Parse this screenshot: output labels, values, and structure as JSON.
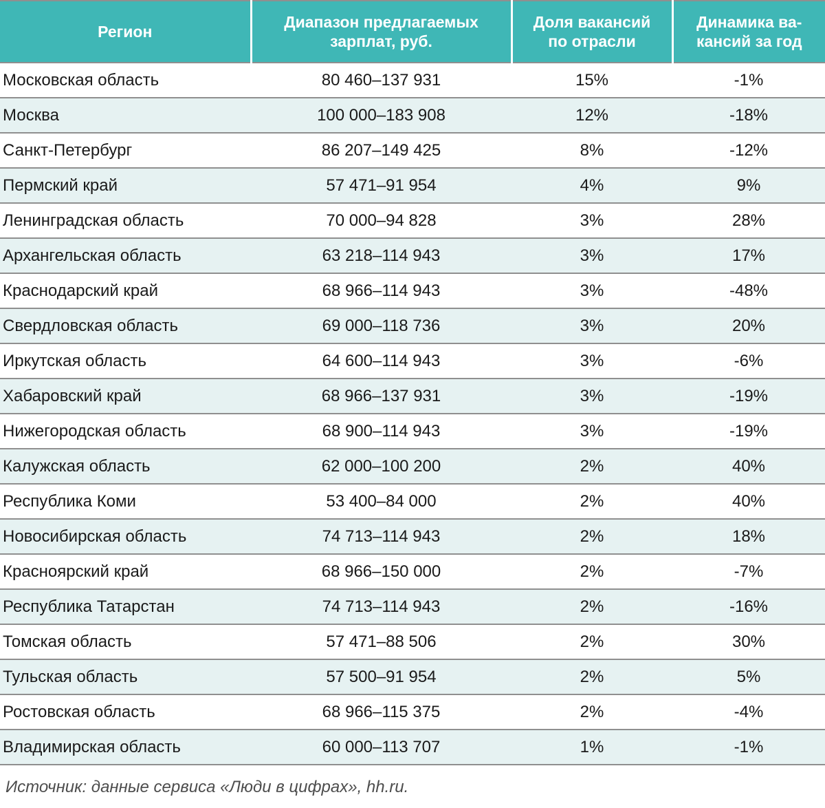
{
  "colors": {
    "header_bg": "#3FB7B6",
    "zebra_row_bg": "#E6F2F2",
    "separator_line": "#8F8F8F",
    "header_text": "#FFFFFF",
    "body_text": "#1A1A1A",
    "source_text": "#4D4D4D"
  },
  "table": {
    "columns": [
      {
        "id": "region",
        "lines": [
          "Регион"
        ]
      },
      {
        "id": "salary_range",
        "lines": [
          "Диапазон предлагаемых",
          "зарплат, руб."
        ]
      },
      {
        "id": "industry_share",
        "lines": [
          "Доля вакансий",
          "по отрасли"
        ]
      },
      {
        "id": "yoy_change",
        "lines": [
          "Динамика ва-",
          "кансий за год"
        ]
      }
    ],
    "rows": [
      [
        "Московская область",
        "80 460–137 931",
        "15%",
        "-1%"
      ],
      [
        "Москва",
        "100 000–183 908",
        "12%",
        "-18%"
      ],
      [
        "Санкт-Петербург",
        "86 207–149 425",
        "8%",
        "-12%"
      ],
      [
        "Пермский край",
        "57 471–91 954",
        "4%",
        "9%"
      ],
      [
        "Ленинградская область",
        "70 000–94 828",
        "3%",
        "28%"
      ],
      [
        "Архангельская область",
        "63 218–114 943",
        "3%",
        "17%"
      ],
      [
        "Краснодарский край",
        "68 966–114 943",
        "3%",
        "-48%"
      ],
      [
        "Свердловская область",
        "69 000–118 736",
        "3%",
        "20%"
      ],
      [
        "Иркутская область",
        "64 600–114 943",
        "3%",
        "-6%"
      ],
      [
        "Хабаровский край",
        "68 966–137 931",
        "3%",
        "-19%"
      ],
      [
        "Нижегородская область",
        "68 900–114 943",
        "3%",
        "-19%"
      ],
      [
        "Калужская область",
        "62 000–100 200",
        "2%",
        "40%"
      ],
      [
        "Республика Коми",
        "53 400–84 000",
        "2%",
        "40%"
      ],
      [
        "Новосибирская область",
        "74 713–114 943",
        "2%",
        "18%"
      ],
      [
        "Красноярский край",
        "68 966–150 000",
        "2%",
        "-7%"
      ],
      [
        "Республика Татарстан",
        "74 713–114 943",
        "2%",
        "-16%"
      ],
      [
        "Томская область",
        "57 471–88 506",
        "2%",
        "30%"
      ],
      [
        "Тульская область",
        "57 500–91 954",
        "2%",
        "5%"
      ],
      [
        "Ростовская область",
        "68 966–115 375",
        "2%",
        "-4%"
      ],
      [
        "Владимирская область",
        "60 000–113 707",
        "1%",
        "-1%"
      ]
    ]
  },
  "source_note": "Источник: данные сервиса «Люди в цифрах», hh.ru."
}
